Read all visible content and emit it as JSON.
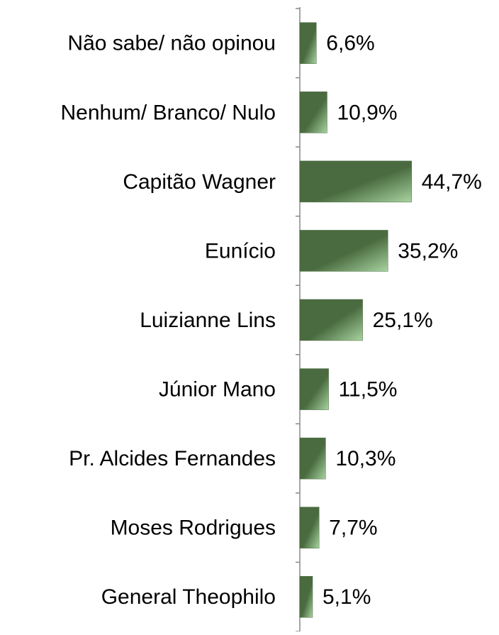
{
  "chart_data": {
    "type": "barh",
    "categories": [
      "Não sabe/ não opinou",
      "Nenhum/ Branco/ Nulo",
      "Capitão Wagner",
      "Eunício",
      "Luizianne Lins",
      "Júnior Mano",
      "Pr. Alcides Fernandes",
      "Moses Rodrigues",
      "General Theophilo"
    ],
    "values": [
      6.6,
      10.9,
      44.7,
      35.2,
      25.1,
      11.5,
      10.3,
      7.7,
      5.1
    ],
    "value_labels": [
      "6,6%",
      "10,9%",
      "44,7%",
      "35,2%",
      "25,1%",
      "11,5%",
      "10,3%",
      "7,7%",
      "5,1%"
    ],
    "color": "#4a6b40"
  }
}
